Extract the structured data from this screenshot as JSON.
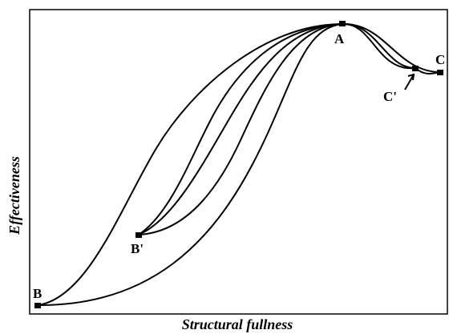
{
  "axes": {
    "x_label": "Structural fullness",
    "y_label": "Effectiveness"
  },
  "points": [
    {
      "label": "A"
    },
    {
      "label": "B"
    },
    {
      "label": "B'"
    },
    {
      "label": "C"
    },
    {
      "label": "C'"
    }
  ]
}
